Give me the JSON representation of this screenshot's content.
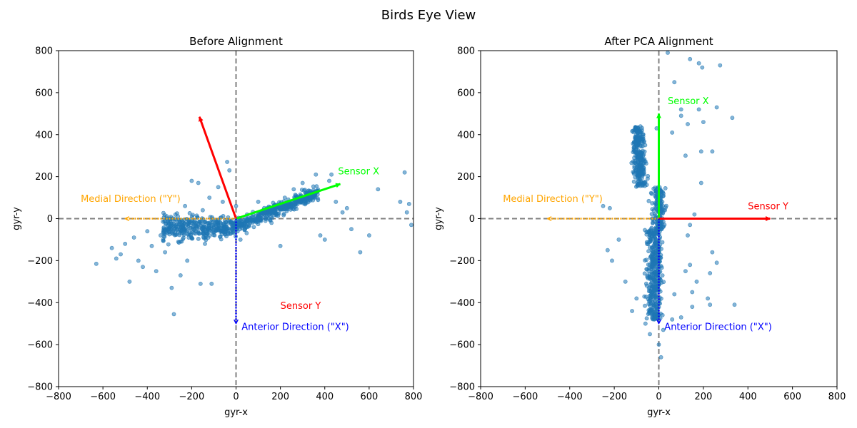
{
  "figure_title": "Birds Eye View",
  "chart_data": [
    {
      "type": "scatter",
      "title": "Before Alignment",
      "xlabel": "gyr-x",
      "ylabel": "gyr-y",
      "xlim": [
        -800,
        800
      ],
      "ylim": [
        -800,
        800
      ],
      "xticks": [
        -800,
        -600,
        -400,
        -200,
        0,
        200,
        400,
        600,
        800
      ],
      "yticks": [
        -800,
        -600,
        -400,
        -200,
        0,
        200,
        400,
        600,
        800
      ],
      "tick_labels": [
        "−800",
        "−600",
        "−400",
        "−200",
        "0",
        "200",
        "400",
        "600",
        "800"
      ],
      "grid": false,
      "point_color": "#1f77b4",
      "point_alpha": 0.55,
      "reference_lines": [
        {
          "orientation": "vertical",
          "value": 0,
          "style": "dashed",
          "color": "#808080"
        },
        {
          "orientation": "horizontal",
          "value": 0,
          "style": "dashed",
          "color": "#808080"
        }
      ],
      "cluster_points": [
        [
          -630,
          -215
        ],
        [
          -560,
          -140
        ],
        [
          -540,
          -190
        ],
        [
          -520,
          -170
        ],
        [
          -500,
          -120
        ],
        [
          -480,
          -300
        ],
        [
          -460,
          -90
        ],
        [
          -440,
          -200
        ],
        [
          -420,
          -230
        ],
        [
          -400,
          -60
        ],
        [
          -380,
          -130
        ],
        [
          -360,
          -250
        ],
        [
          -340,
          -80
        ],
        [
          -320,
          -160
        ],
        [
          -300,
          -40
        ],
        [
          -290,
          -330
        ],
        [
          -280,
          -455
        ],
        [
          -260,
          -110
        ],
        [
          -250,
          -270
        ],
        [
          -230,
          60
        ],
        [
          -220,
          -200
        ],
        [
          -200,
          180
        ],
        [
          -180,
          -60
        ],
        [
          -170,
          170
        ],
        [
          -160,
          -310
        ],
        [
          -150,
          40
        ],
        [
          -140,
          -120
        ],
        [
          -120,
          100
        ],
        [
          -110,
          -310
        ],
        [
          -100,
          -30
        ],
        [
          -80,
          150
        ],
        [
          -60,
          80
        ],
        [
          -40,
          270
        ],
        [
          -30,
          230
        ],
        [
          -20,
          -50
        ],
        [
          0,
          60
        ],
        [
          20,
          -100
        ],
        [
          50,
          20
        ],
        [
          80,
          -40
        ],
        [
          100,
          80
        ],
        [
          130,
          30
        ],
        [
          160,
          -20
        ],
        [
          200,
          -130
        ],
        [
          220,
          100
        ],
        [
          260,
          140
        ],
        [
          300,
          170
        ],
        [
          320,
          110
        ],
        [
          360,
          210
        ],
        [
          380,
          -80
        ],
        [
          400,
          -100
        ],
        [
          420,
          180
        ],
        [
          430,
          210
        ],
        [
          450,
          80
        ],
        [
          480,
          30
        ],
        [
          500,
          50
        ],
        [
          520,
          -50
        ],
        [
          560,
          -160
        ],
        [
          600,
          -80
        ],
        [
          640,
          140
        ],
        [
          740,
          80
        ],
        [
          760,
          220
        ],
        [
          770,
          30
        ],
        [
          780,
          70
        ],
        [
          790,
          -30
        ]
      ],
      "arrows": [
        {
          "label": "Sensor X",
          "color": "#00ff00",
          "style": "solid",
          "from": [
            0,
            0
          ],
          "to": [
            470,
            165
          ],
          "label_at": [
            460,
            210
          ]
        },
        {
          "label": "Sensor Y",
          "color": "#ff0000",
          "style": "solid",
          "from": [
            0,
            0
          ],
          "to": [
            -165,
            485
          ],
          "label_at": [
            200,
            -430
          ]
        },
        {
          "label": "Medial Direction (\"Y\")",
          "color": "#ffa500",
          "style": "dotted",
          "from": [
            0,
            0
          ],
          "to": [
            -500,
            0
          ],
          "label_at": [
            -700,
            80
          ]
        },
        {
          "label": "Anterior Direction (\"X\")",
          "color": "#0000ff",
          "style": "dotted",
          "from": [
            0,
            0
          ],
          "to": [
            0,
            -500
          ],
          "label_at": [
            25,
            -530
          ]
        }
      ]
    },
    {
      "type": "scatter",
      "title": "After PCA Alignment",
      "xlabel": "gyr-x",
      "ylabel": "gyr-y",
      "xlim": [
        -800,
        800
      ],
      "ylim": [
        -800,
        800
      ],
      "xticks": [
        -800,
        -600,
        -400,
        -200,
        0,
        200,
        400,
        600,
        800
      ],
      "yticks": [
        -800,
        -600,
        -400,
        -200,
        0,
        200,
        400,
        600,
        800
      ],
      "tick_labels": [
        "−800",
        "−600",
        "−400",
        "−200",
        "0",
        "200",
        "400",
        "600",
        "800"
      ],
      "grid": false,
      "point_color": "#1f77b4",
      "point_alpha": 0.55,
      "reference_lines": [
        {
          "orientation": "vertical",
          "value": 0,
          "style": "dashed",
          "color": "#808080"
        },
        {
          "orientation": "horizontal",
          "value": 0,
          "style": "dashed",
          "color": "#808080"
        }
      ],
      "cluster_points": [
        [
          40,
          790
        ],
        [
          140,
          760
        ],
        [
          180,
          740
        ],
        [
          195,
          720
        ],
        [
          275,
          730
        ],
        [
          70,
          650
        ],
        [
          100,
          520
        ],
        [
          180,
          520
        ],
        [
          260,
          530
        ],
        [
          330,
          480
        ],
        [
          130,
          450
        ],
        [
          200,
          460
        ],
        [
          100,
          490
        ],
        [
          190,
          320
        ],
        [
          240,
          320
        ],
        [
          190,
          170
        ],
        [
          60,
          410
        ],
        [
          120,
          300
        ],
        [
          -250,
          60
        ],
        [
          -220,
          50
        ],
        [
          -180,
          -100
        ],
        [
          -230,
          -150
        ],
        [
          -210,
          -200
        ],
        [
          -150,
          -300
        ],
        [
          -120,
          -440
        ],
        [
          -100,
          -380
        ],
        [
          -60,
          -500
        ],
        [
          -40,
          -550
        ],
        [
          0,
          -600
        ],
        [
          10,
          -660
        ],
        [
          20,
          -530
        ],
        [
          60,
          -480
        ],
        [
          100,
          -470
        ],
        [
          150,
          -420
        ],
        [
          220,
          -380
        ],
        [
          230,
          -410
        ],
        [
          340,
          -410
        ],
        [
          240,
          -160
        ],
        [
          230,
          -260
        ],
        [
          170,
          -300
        ],
        [
          150,
          -350
        ],
        [
          140,
          -220
        ],
        [
          120,
          -250
        ],
        [
          70,
          -360
        ],
        [
          260,
          -210
        ],
        [
          -10,
          430
        ],
        [
          -110,
          340
        ],
        [
          -70,
          380
        ],
        [
          130,
          -80
        ],
        [
          140,
          -30
        ],
        [
          160,
          20
        ]
      ],
      "arrows": [
        {
          "label": "Sensor X",
          "color": "#00ff00",
          "style": "solid",
          "from": [
            0,
            0
          ],
          "to": [
            0,
            500
          ],
          "label_at": [
            40,
            545
          ]
        },
        {
          "label": "Sensor Y",
          "color": "#ff0000",
          "style": "solid",
          "from": [
            0,
            0
          ],
          "to": [
            500,
            0
          ],
          "label_at": [
            400,
            45
          ]
        },
        {
          "label": "Medial Direction (\"Y\")",
          "color": "#ffa500",
          "style": "dotted",
          "from": [
            0,
            0
          ],
          "to": [
            -500,
            0
          ],
          "label_at": [
            -700,
            80
          ]
        },
        {
          "label": "Anterior Direction (\"X\")",
          "color": "#0000ff",
          "style": "dotted",
          "from": [
            0,
            0
          ],
          "to": [
            0,
            -500
          ],
          "label_at": [
            25,
            -530
          ]
        }
      ]
    }
  ]
}
